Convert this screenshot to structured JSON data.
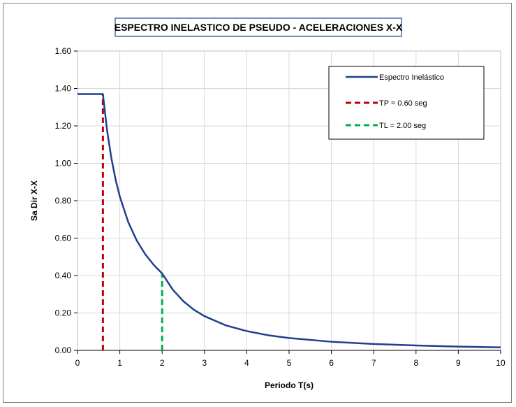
{
  "chart_data": {
    "type": "line",
    "title": "ESPECTRO INELASTICO DE PSEUDO - ACELERACIONES X-X",
    "xlabel": "Periodo T(s)",
    "ylabel": "Sa Dir X-X",
    "xlim": [
      0,
      10
    ],
    "ylim": [
      0,
      1.6
    ],
    "x_ticks": [
      "0",
      "1",
      "2",
      "3",
      "4",
      "5",
      "6",
      "7",
      "8",
      "9",
      "10"
    ],
    "y_ticks": [
      "0.00",
      "0.20",
      "0.40",
      "0.60",
      "0.80",
      "1.00",
      "1.20",
      "1.40",
      "1.60"
    ],
    "grid": true,
    "legend_position": "top-right",
    "series": [
      {
        "name": "Espectro Inelástico",
        "color": "#1f3f8f",
        "style": "solid",
        "x": [
          0,
          0.6,
          0.7,
          0.8,
          0.9,
          1.0,
          1.2,
          1.4,
          1.6,
          1.8,
          2.0,
          2.25,
          2.5,
          2.75,
          3.0,
          3.5,
          4.0,
          4.5,
          5.0,
          6.0,
          7.0,
          8.0,
          9.0,
          10.0
        ],
        "y": [
          1.37,
          1.37,
          1.174,
          1.028,
          0.913,
          0.822,
          0.685,
          0.587,
          0.514,
          0.457,
          0.411,
          0.325,
          0.263,
          0.217,
          0.183,
          0.134,
          0.103,
          0.081,
          0.066,
          0.046,
          0.034,
          0.026,
          0.02,
          0.016
        ]
      },
      {
        "name": "TP = 0.60 seg",
        "color": "#c00000",
        "style": "dashed",
        "x": [
          0.6,
          0.6
        ],
        "y": [
          0,
          1.37
        ]
      },
      {
        "name": "TL = 2.00 seg",
        "color": "#00b050",
        "style": "dashed",
        "x": [
          2.0,
          2.0
        ],
        "y": [
          0,
          0.411
        ]
      }
    ]
  }
}
